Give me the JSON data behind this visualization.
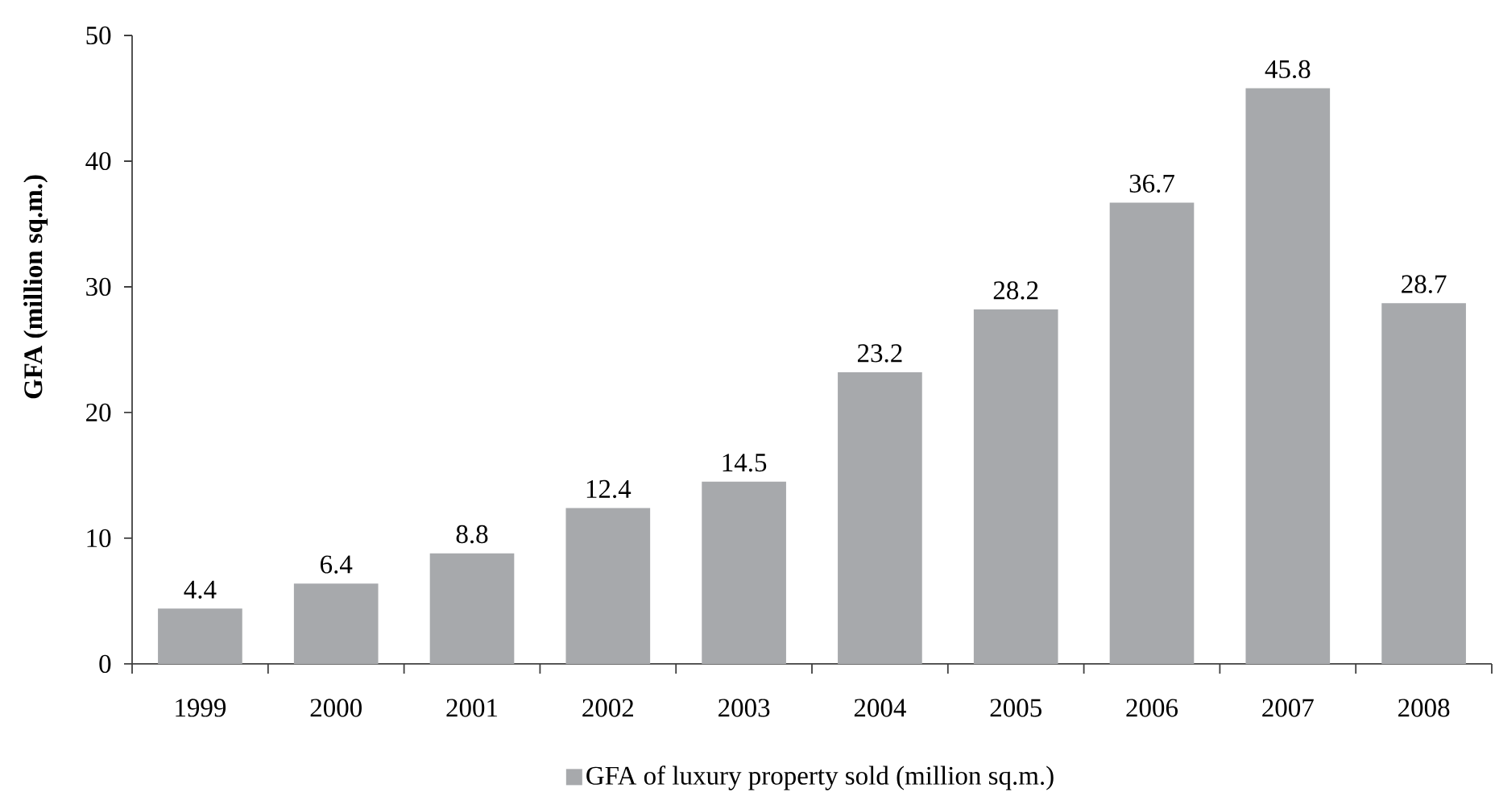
{
  "chart_data": {
    "type": "bar",
    "ylabel": "GFA (million sq.m.)",
    "categories": [
      "1999",
      "2000",
      "2001",
      "2002",
      "2003",
      "2004",
      "2005",
      "2006",
      "2007",
      "2008"
    ],
    "series": [
      {
        "name": "GFA of luxury property sold (million sq.m.)",
        "color": "#a7a9ac",
        "values": [
          4.4,
          6.4,
          8.8,
          12.4,
          14.5,
          23.2,
          28.2,
          36.7,
          45.8,
          28.7
        ]
      }
    ],
    "ylim": [
      0,
      50
    ],
    "yticks": [
      0,
      10,
      20,
      30,
      40,
      50
    ],
    "data_labels": true,
    "legend": "bottom"
  }
}
